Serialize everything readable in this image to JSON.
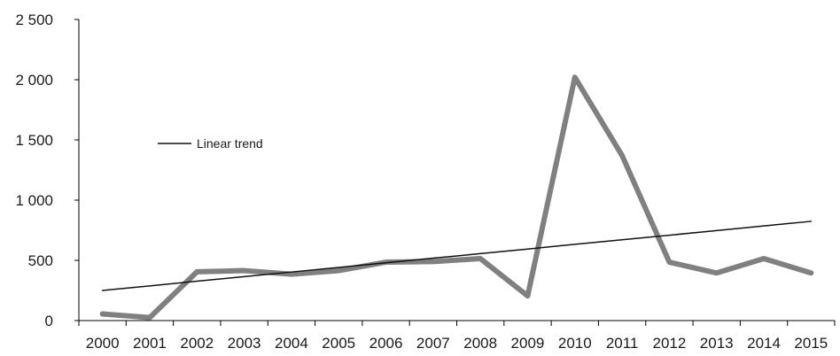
{
  "chart_data": {
    "type": "line",
    "title": "",
    "xlabel": "",
    "ylabel": "",
    "categories": [
      "2000",
      "2001",
      "2002",
      "2003",
      "2004",
      "2005",
      "2006",
      "2007",
      "2008",
      "2009",
      "2010",
      "2011",
      "2012",
      "2013",
      "2014",
      "2015"
    ],
    "ylim": [
      0,
      2500
    ],
    "yticks": [
      {
        "value": 0,
        "label": "0"
      },
      {
        "value": 500,
        "label": "500"
      },
      {
        "value": 1000,
        "label": "1 000"
      },
      {
        "value": 1500,
        "label": "1 500"
      },
      {
        "value": 2000,
        "label": "2 000"
      },
      {
        "value": 2500,
        "label": "2 500"
      }
    ],
    "series": [
      {
        "values": [
          55,
          25,
          405,
          415,
          385,
          415,
          485,
          490,
          515,
          205,
          2020,
          1370,
          485,
          395,
          515,
          395
        ],
        "color": "#808080"
      },
      {
        "name": "Linear trend",
        "values": [
          250,
          288,
          327,
          365,
          403,
          441,
          480,
          518,
          556,
          594,
          633,
          671,
          709,
          747,
          786,
          824
        ],
        "color": "#111111"
      }
    ],
    "legend": {
      "label": "Linear trend",
      "placement": "top-left"
    },
    "grid": false
  }
}
